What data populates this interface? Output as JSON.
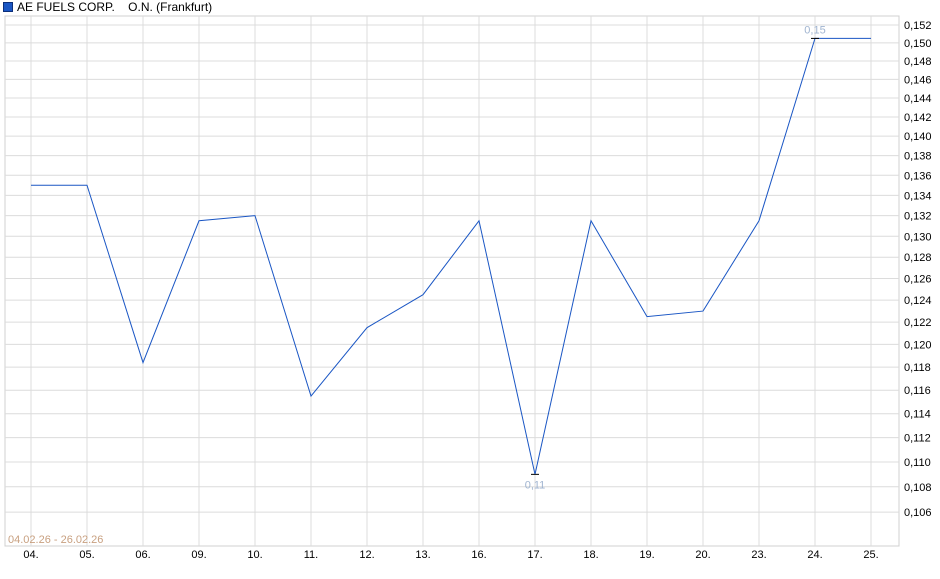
{
  "chart_data": {
    "type": "line",
    "legend": {
      "name": "AE FUELS CORP.    O.N. (Frankfurt)",
      "color": "#1a56c4",
      "placement": "top-left"
    },
    "date_range": "04.02.26 - 26.02.26",
    "categories": [
      "04.",
      "05.",
      "06.",
      "09.",
      "10.",
      "11.",
      "12.",
      "13.",
      "16.",
      "17.",
      "18.",
      "19.",
      "20.",
      "23.",
      "24.",
      "25."
    ],
    "series": [
      {
        "values": [
          0.135,
          0.135,
          0.1184,
          0.1315,
          0.132,
          0.1155,
          0.1215,
          0.1245,
          0.1315,
          0.109,
          0.1315,
          0.1225,
          0.123,
          0.1315,
          0.1505,
          0.1505
        ],
        "color": "#1a56c4"
      }
    ],
    "y_scale": "log",
    "ylim": [
      0.1045,
      0.1532
    ],
    "y_ticks": [
      "0,106",
      "0,108",
      "0,110",
      "0,112",
      "0,114",
      "0,116",
      "0,118",
      "0,120",
      "0,122",
      "0,124",
      "0,126",
      "0,128",
      "0,130",
      "0,132",
      "0,134",
      "0,136",
      "0,138",
      "0,140",
      "0,142",
      "0,144",
      "0,146",
      "0,148",
      "0,150",
      "0,152"
    ],
    "y_axis_position": "right",
    "grid": true,
    "annotations": {
      "max_label": "0,15",
      "min_label": "0,11"
    }
  }
}
